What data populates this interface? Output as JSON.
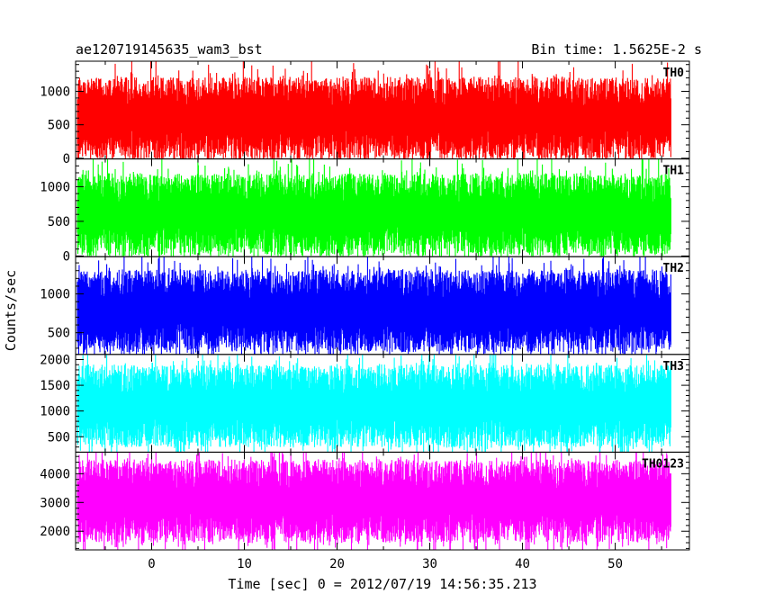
{
  "header": {
    "title": "ae120719145635_wam3_bst",
    "bin_time": "Bin time: 1.5625E-2 s"
  },
  "chart_data": {
    "type": "line",
    "title": "ae120719145635_wam3_bst",
    "bin_time_s": 0.015625,
    "xlabel": "Time [sec] 0 = 2012/07/19 14:56:35.213",
    "ylabel": "Counts/sec",
    "xlim": [
      -8.2,
      58.0
    ],
    "x_data_range": [
      -8.0,
      56.0
    ],
    "x_ticks": [
      0,
      10,
      20,
      30,
      40,
      50
    ],
    "x_tick_labels": [
      "0",
      "10",
      "20",
      "30",
      "40",
      "50"
    ],
    "grid": false,
    "legend": "none",
    "panels": [
      {
        "name": "TH0",
        "color": "#ff0000",
        "ylim": [
          -10,
          1450
        ],
        "yticks": [
          0,
          500,
          1000
        ],
        "ytick_labels": [
          "0",
          "500",
          "1000"
        ],
        "approx_range": [
          0,
          1450
        ],
        "approx_mean": 600
      },
      {
        "name": "TH1",
        "color": "#00ff00",
        "ylim": [
          -10,
          1400
        ],
        "yticks": [
          0,
          500,
          1000
        ],
        "ytick_labels": [
          "0",
          "500",
          "1000"
        ],
        "approx_range": [
          0,
          1400
        ],
        "approx_mean": 600
      },
      {
        "name": "TH2",
        "color": "#0000ff",
        "ylim": [
          220,
          1480
        ],
        "yticks": [
          500,
          1000
        ],
        "ytick_labels": [
          "500",
          "1000"
        ],
        "approx_range": [
          220,
          1480
        ],
        "approx_mean": 780
      },
      {
        "name": "TH3",
        "color": "#00ffff",
        "ylim": [
          200,
          2100
        ],
        "yticks": [
          500,
          1000,
          1500,
          2000
        ],
        "ytick_labels": [
          "500",
          "1000",
          "1500",
          "2000"
        ],
        "approx_range": [
          200,
          2100
        ],
        "approx_mean": 1100
      },
      {
        "name": "TH0123",
        "color": "#ff00ff",
        "ylim": [
          1350,
          4750
        ],
        "yticks": [
          2000,
          3000,
          4000
        ],
        "ytick_labels": [
          "2000",
          "3000",
          "4000"
        ],
        "approx_range": [
          1350,
          4750
        ],
        "approx_mean": 3050
      }
    ]
  }
}
